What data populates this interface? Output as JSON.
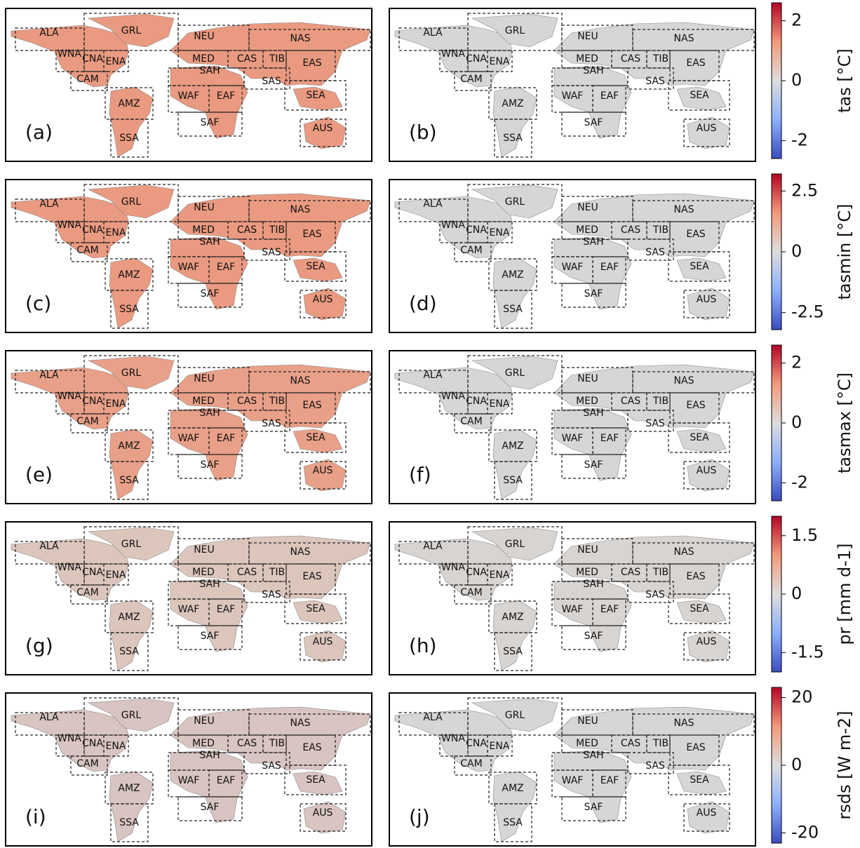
{
  "panels": [
    {
      "label": "(a)"
    },
    {
      "label": "(b)"
    },
    {
      "label": "(c)"
    },
    {
      "label": "(d)"
    },
    {
      "label": "(e)"
    },
    {
      "label": "(f)"
    },
    {
      "label": "(g)"
    },
    {
      "label": "(h)"
    },
    {
      "label": "(i)"
    },
    {
      "label": "(j)"
    }
  ],
  "regions": [
    "ALA",
    "GRL",
    "NEU",
    "NAS",
    "WNA",
    "CNA",
    "ENA",
    "CAM",
    "MED",
    "CAS",
    "TIB",
    "EAS",
    "SAH",
    "SAS",
    "WAF",
    "EAF",
    "SEA",
    "AMZ",
    "SAF",
    "AUS",
    "SSA"
  ],
  "colorbars": [
    {
      "label": "tas [°C]",
      "clim": [
        -2.6,
        2.6
      ],
      "ticks": [
        2,
        0,
        -2
      ]
    },
    {
      "label": "tasmin [°C]",
      "clim": [
        -3.2,
        3.2
      ],
      "ticks": [
        2.5,
        0,
        -2.5
      ]
    },
    {
      "label": "tasmax [°C]",
      "clim": [
        -2.6,
        2.6
      ],
      "ticks": [
        2,
        0,
        -2
      ]
    },
    {
      "label": "pr [mm d-1]",
      "clim": [
        -2.0,
        2.0
      ],
      "ticks": [
        1.5,
        0,
        -1.5
      ]
    },
    {
      "label": "rsds [W m-2]",
      "clim": [
        -23,
        23
      ],
      "ticks": [
        20,
        0,
        -20
      ]
    }
  ]
}
